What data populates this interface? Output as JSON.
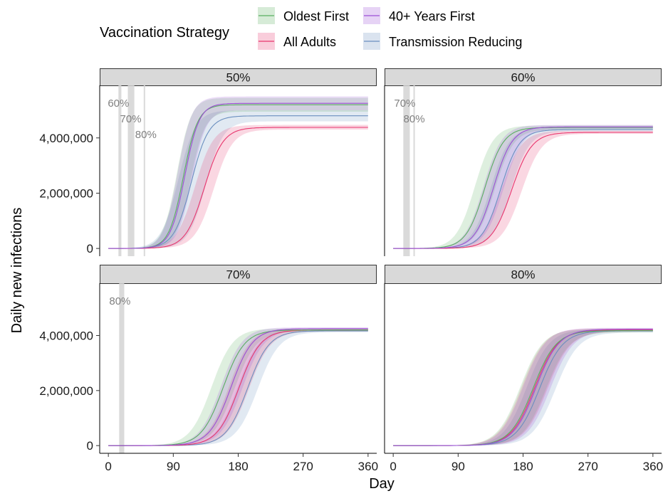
{
  "chart_data": {
    "type": "line",
    "xlabel": "Day",
    "ylabel": "Daily new infections",
    "xlim": [
      -12,
      372
    ],
    "ylim": [
      -280000,
      5900000
    ],
    "x_ticks": [
      0,
      90,
      180,
      270,
      360
    ],
    "y_ticks": [
      0,
      2000000,
      4000000
    ],
    "y_tick_labels": [
      "0",
      "2,000,000",
      "4,000,000"
    ],
    "grid": false,
    "legend": {
      "title": "Vaccination Strategy",
      "placement": "top",
      "entries": [
        {
          "label": "Oldest First",
          "color": "#5aae61"
        },
        {
          "label": "40+ Years First",
          "color": "#9d4fd6"
        },
        {
          "label": "All Adults",
          "color": "#e8366e"
        },
        {
          "label": "Transmission Reducing",
          "color": "#6b8fbf"
        }
      ]
    },
    "panels": [
      {
        "title": "50%",
        "vlines": [
          {
            "label": "60%",
            "day": 16,
            "band": [
              14,
              18
            ]
          },
          {
            "label": "70%",
            "day": 31,
            "band": [
              27,
              36
            ]
          },
          {
            "label": "80%",
            "day": 50,
            "band": [
              49,
              51
            ]
          }
        ],
        "series": [
          {
            "name": "Oldest First",
            "plateau": 5200000,
            "midpoint": 104,
            "steepness": 10,
            "band_plateau": [
              4950000,
              5450000
            ],
            "band_mid": [
              95,
              114
            ]
          },
          {
            "name": "40+ Years First",
            "plateau": 5250000,
            "midpoint": 106,
            "steepness": 10,
            "band_plateau": [
              5000000,
              5500000
            ],
            "band_mid": [
              96,
              116
            ]
          },
          {
            "name": "All Adults",
            "plateau": 4380000,
            "midpoint": 133,
            "steepness": 13,
            "band_plateau": [
              4300000,
              4470000
            ],
            "band_mid": [
              120,
              146
            ]
          },
          {
            "name": "Transmission Reducing",
            "plateau": 4800000,
            "midpoint": 115,
            "steepness": 12,
            "band_plateau": [
              4600000,
              5000000
            ],
            "band_mid": [
              97,
              135
            ]
          }
        ]
      },
      {
        "title": "60%",
        "vlines": [
          {
            "label": "70%",
            "day": 18,
            "band": [
              14,
              23
            ]
          },
          {
            "label": "80%",
            "day": 29,
            "band": [
              28,
              30
            ]
          }
        ],
        "series": [
          {
            "name": "Oldest First",
            "plateau": 4380000,
            "midpoint": 127,
            "steepness": 13,
            "band_plateau": [
              4300000,
              4450000
            ],
            "band_mid": [
              113,
              141
            ]
          },
          {
            "name": "40+ Years First",
            "plateau": 4400000,
            "midpoint": 139,
            "steepness": 13,
            "band_plateau": [
              4330000,
              4470000
            ],
            "band_mid": [
              125,
              153
            ]
          },
          {
            "name": "All Adults",
            "plateau": 4200000,
            "midpoint": 164,
            "steepness": 14,
            "band_plateau": [
              4150000,
              4260000
            ],
            "band_mid": [
              150,
              178
            ]
          },
          {
            "name": "Transmission Reducing",
            "plateau": 4300000,
            "midpoint": 149,
            "steepness": 13,
            "band_plateau": [
              4240000,
              4370000
            ],
            "band_mid": [
              135,
              163
            ]
          }
        ]
      },
      {
        "title": "70%",
        "vlines": [
          {
            "label": "80%",
            "day": 18,
            "band": [
              15,
              22
            ]
          }
        ],
        "series": [
          {
            "name": "Oldest First",
            "plateau": 4200000,
            "midpoint": 159,
            "steepness": 15,
            "band_plateau": [
              4150000,
              4260000
            ],
            "band_mid": [
              143,
              175
            ]
          },
          {
            "name": "40+ Years First",
            "plateau": 4250000,
            "midpoint": 170,
            "steepness": 15,
            "band_plateau": [
              4200000,
              4300000
            ],
            "band_mid": [
              156,
              186
            ]
          },
          {
            "name": "All Adults",
            "plateau": 4200000,
            "midpoint": 181,
            "steepness": 15,
            "band_plateau": [
              4150000,
              4260000
            ],
            "band_mid": [
              167,
              195
            ]
          },
          {
            "name": "Transmission Reducing",
            "plateau": 4170000,
            "midpoint": 193,
            "steepness": 15,
            "band_plateau": [
              4120000,
              4220000
            ],
            "band_mid": [
              179,
              207
            ]
          }
        ]
      },
      {
        "title": "80%",
        "vlines": [],
        "series": [
          {
            "name": "Oldest First",
            "plateau": 4180000,
            "midpoint": 194,
            "steepness": 16,
            "band_plateau": [
              4120000,
              4240000
            ],
            "band_mid": [
              176,
              212
            ]
          },
          {
            "name": "40+ Years First",
            "plateau": 4230000,
            "midpoint": 198,
            "steepness": 16,
            "band_plateau": [
              4170000,
              4280000
            ],
            "band_mid": [
              180,
              218
            ]
          },
          {
            "name": "All Adults",
            "plateau": 4200000,
            "midpoint": 196,
            "steepness": 16,
            "band_plateau": [
              4140000,
              4260000
            ],
            "band_mid": [
              178,
              214
            ]
          },
          {
            "name": "Transmission Reducing",
            "plateau": 4170000,
            "midpoint": 203,
            "steepness": 16,
            "band_plateau": [
              4110000,
              4230000
            ],
            "band_mid": [
              185,
              225
            ]
          }
        ]
      }
    ]
  }
}
